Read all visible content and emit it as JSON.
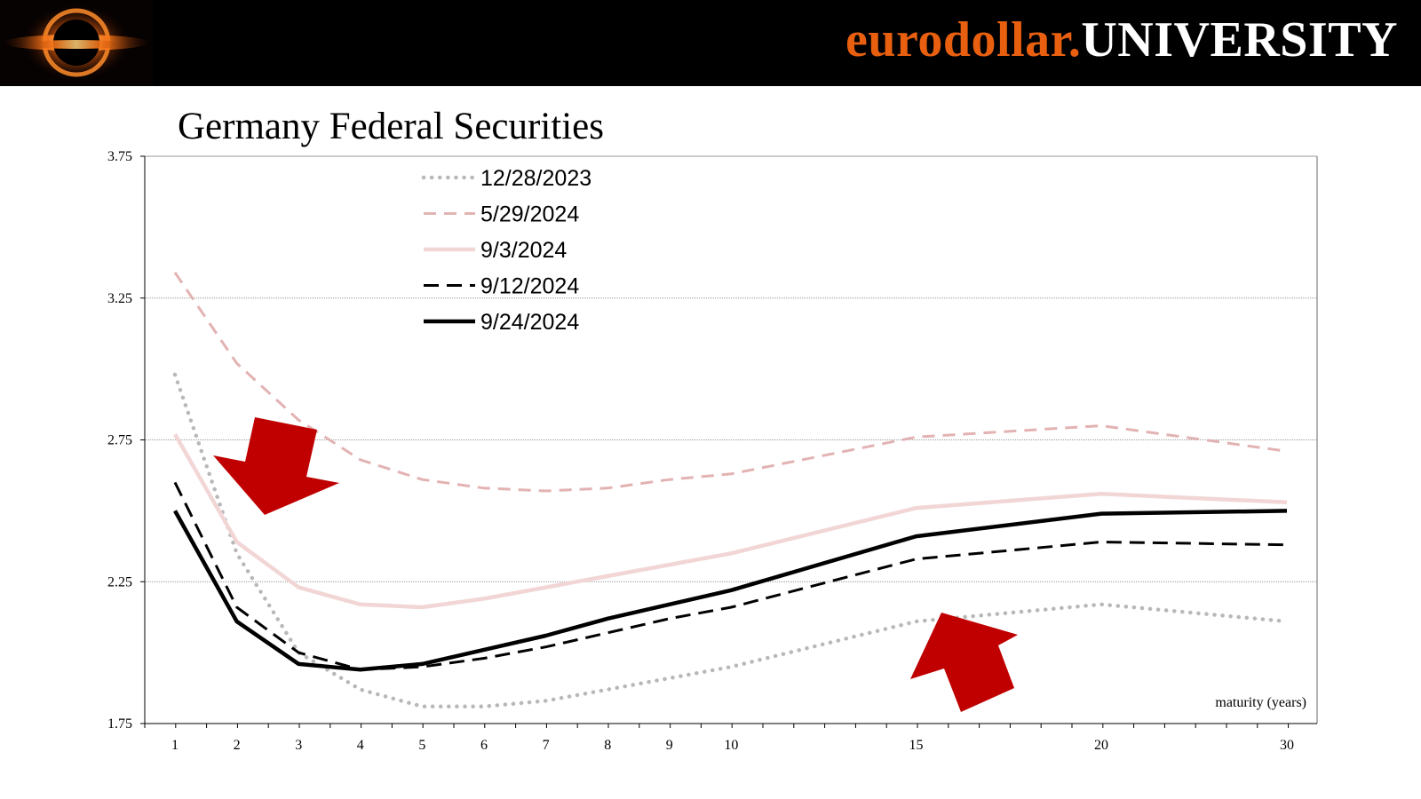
{
  "header": {
    "brand_part1": "eurodollar.",
    "brand_part2": "UNIVERSITY",
    "logo_icon": "black-hole-icon",
    "brand_orange": "#e8600f",
    "brand_white": "#ffffff"
  },
  "chart_data": {
    "type": "line",
    "title": "Germany Federal Securities",
    "xlabel": "maturity (years)",
    "ylabel": "",
    "x": [
      1,
      2,
      3,
      4,
      5,
      6,
      7,
      8,
      9,
      10,
      15,
      20,
      30
    ],
    "xticks": [
      1,
      2,
      3,
      4,
      5,
      6,
      7,
      8,
      9,
      10,
      15,
      20,
      30
    ],
    "ylim": [
      1.75,
      3.75
    ],
    "yticks": [
      "1.75",
      "2.25",
      "2.75",
      "3.25",
      "3.75"
    ],
    "grid": "horizontal dotted",
    "legend_position": "top-left",
    "annotations": [
      "red-arrow-down",
      "red-arrow-up"
    ],
    "series": [
      {
        "name": "12/28/2023",
        "style": "dotted",
        "color": "#b8b8b8",
        "width": 4.5,
        "x": [
          1,
          2,
          3,
          4,
          5,
          6,
          7,
          8,
          9,
          10,
          15,
          20,
          30
        ],
        "values": [
          2.98,
          2.35,
          2.0,
          1.87,
          1.81,
          1.81,
          1.83,
          1.87,
          1.91,
          1.95,
          2.11,
          2.17,
          2.11
        ]
      },
      {
        "name": "5/29/2024",
        "style": "dashed",
        "color": "#e3b2b2",
        "width": 3,
        "x": [
          1,
          2,
          3,
          4,
          5,
          6,
          7,
          8,
          9,
          10,
          15,
          20,
          30
        ],
        "values": [
          3.34,
          3.02,
          2.82,
          2.68,
          2.61,
          2.58,
          2.57,
          2.58,
          2.61,
          2.63,
          2.76,
          2.8,
          2.71
        ]
      },
      {
        "name": "9/3/2024",
        "style": "solid",
        "color": "#f2d6d6",
        "width": 4.5,
        "x": [
          1,
          2,
          3,
          4,
          5,
          6,
          7,
          8,
          9,
          10,
          15,
          20,
          30
        ],
        "values": [
          2.77,
          2.39,
          2.23,
          2.17,
          2.16,
          2.19,
          2.23,
          2.27,
          2.31,
          2.35,
          2.51,
          2.56,
          2.53
        ]
      },
      {
        "name": "9/12/2024",
        "style": "dashed",
        "color": "#000000",
        "width": 3,
        "x": [
          1,
          2,
          3,
          4,
          5,
          6,
          7,
          8,
          9,
          10,
          15,
          20,
          30
        ],
        "values": [
          2.6,
          2.16,
          2.0,
          1.94,
          1.95,
          1.98,
          2.02,
          2.07,
          2.12,
          2.16,
          2.33,
          2.39,
          2.38
        ]
      },
      {
        "name": "9/24/2024",
        "style": "solid",
        "color": "#000000",
        "width": 4.5,
        "x": [
          1,
          2,
          3,
          4,
          5,
          6,
          7,
          8,
          9,
          10,
          15,
          20,
          30
        ],
        "values": [
          2.5,
          2.11,
          1.96,
          1.94,
          1.96,
          2.01,
          2.06,
          2.12,
          2.17,
          2.22,
          2.41,
          2.49,
          2.5
        ]
      }
    ]
  }
}
